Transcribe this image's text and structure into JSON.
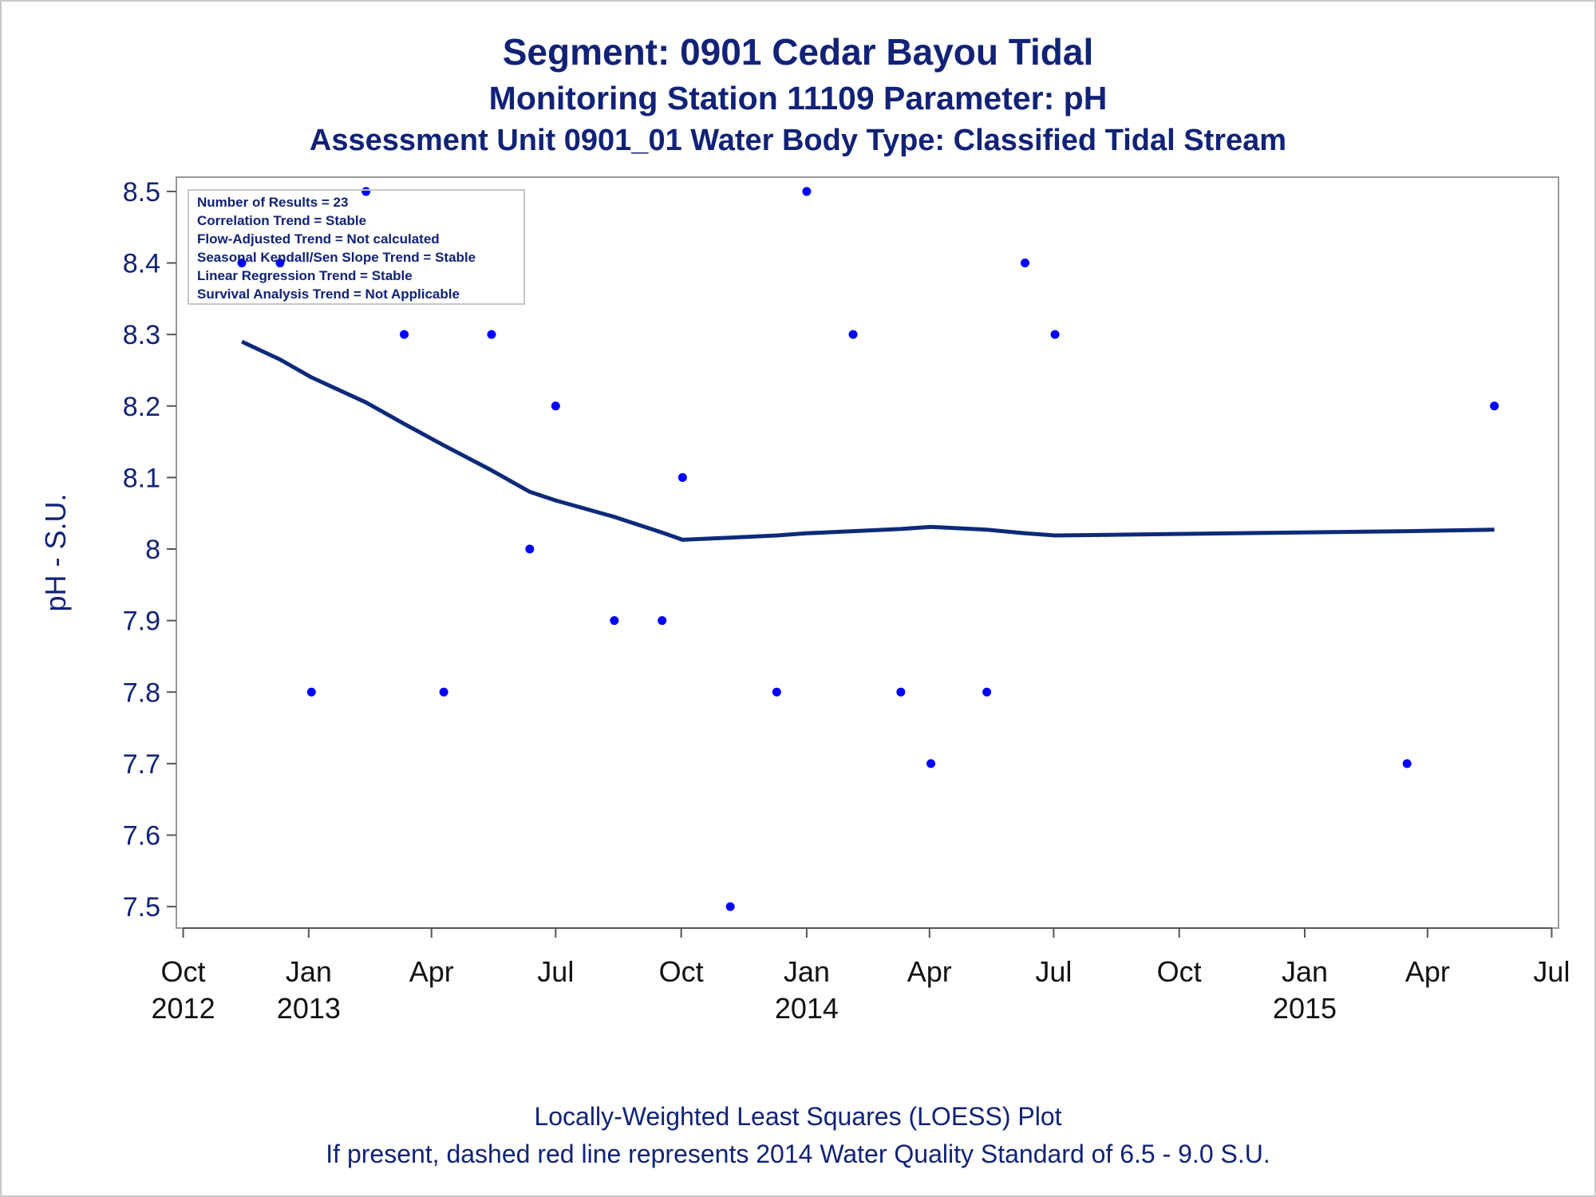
{
  "title": "Segment: 0901  Cedar Bayou Tidal",
  "subtitle_1": "Monitoring Station 11109 Parameter: pH",
  "subtitle_2": "Assessment Unit 0901_01   Water Body Type: Classified Tidal Stream",
  "footnotes": [
    "Locally-Weighted Least Squares (LOESS) Plot",
    "If present, dashed red line represents 2014 Water Quality Standard of 6.5 - 9.0 S.U."
  ],
  "inset_box": [
    "Number of Results = 23",
    "Correlation Trend = Stable",
    "Flow-Adjusted Trend = Not calculated",
    "Seasonal Kendall/Sen Slope Trend = Stable",
    "Linear Regression Trend = Stable",
    "Survival Analysis Trend = Not Applicable"
  ],
  "colors": {
    "text": "#112277",
    "points": "#0000ff",
    "loess_line": "#0d2a7a",
    "axis": "#999999"
  },
  "chart_data": {
    "type": "scatter",
    "xlabel": "",
    "ylabel": "pH - S.U.",
    "xlim": [
      "2012-09-26",
      "2015-07-06"
    ],
    "ylim": [
      7.47,
      8.52
    ],
    "grid": false,
    "y_ticks": [
      7.5,
      7.6,
      7.7,
      7.8,
      7.9,
      8,
      8.1,
      8.2,
      8.3,
      8.4,
      8.5
    ],
    "y_tick_labels": [
      "7.5",
      "7.6",
      "7.7",
      "7.8",
      "7.9",
      "8",
      "8.1",
      "8.2",
      "8.3",
      "8.4",
      "8.5"
    ],
    "x_ticks": [
      {
        "date": "2012-10-01",
        "month": "Oct",
        "year": "2012"
      },
      {
        "date": "2013-01-01",
        "month": "Jan",
        "year": "2013"
      },
      {
        "date": "2013-04-01",
        "month": "Apr",
        "year": ""
      },
      {
        "date": "2013-07-01",
        "month": "Jul",
        "year": ""
      },
      {
        "date": "2013-10-01",
        "month": "Oct",
        "year": ""
      },
      {
        "date": "2014-01-01",
        "month": "Jan",
        "year": "2014"
      },
      {
        "date": "2014-04-01",
        "month": "Apr",
        "year": ""
      },
      {
        "date": "2014-07-01",
        "month": "Jul",
        "year": ""
      },
      {
        "date": "2014-10-01",
        "month": "Oct",
        "year": ""
      },
      {
        "date": "2015-01-01",
        "month": "Jan",
        "year": "2015"
      },
      {
        "date": "2015-04-01",
        "month": "Apr",
        "year": ""
      },
      {
        "date": "2015-07-01",
        "month": "Jul",
        "year": ""
      }
    ],
    "series": [
      {
        "type": "scatter",
        "points": [
          {
            "x": "2012-11-13",
            "y": 8.4
          },
          {
            "x": "2012-12-11",
            "y": 8.4
          },
          {
            "x": "2013-01-03",
            "y": 7.8
          },
          {
            "x": "2013-02-12",
            "y": 8.5
          },
          {
            "x": "2013-03-12",
            "y": 8.3
          },
          {
            "x": "2013-04-10",
            "y": 7.8
          },
          {
            "x": "2013-05-15",
            "y": 8.3
          },
          {
            "x": "2013-06-12",
            "y": 8.0
          },
          {
            "x": "2013-07-01",
            "y": 8.2
          },
          {
            "x": "2013-08-13",
            "y": 7.9
          },
          {
            "x": "2013-09-17",
            "y": 7.9
          },
          {
            "x": "2013-10-02",
            "y": 8.1
          },
          {
            "x": "2013-11-06",
            "y": 7.5
          },
          {
            "x": "2013-12-10",
            "y": 7.8
          },
          {
            "x": "2014-01-01",
            "y": 8.5
          },
          {
            "x": "2014-02-04",
            "y": 8.3
          },
          {
            "x": "2014-03-11",
            "y": 7.8
          },
          {
            "x": "2014-04-02",
            "y": 7.7
          },
          {
            "x": "2014-05-13",
            "y": 7.8
          },
          {
            "x": "2014-06-10",
            "y": 8.4
          },
          {
            "x": "2014-07-02",
            "y": 8.3
          },
          {
            "x": "2015-03-17",
            "y": 7.7
          },
          {
            "x": "2015-05-20",
            "y": 8.2
          }
        ]
      },
      {
        "type": "line",
        "points": [
          {
            "x": "2012-11-13",
            "y": 8.29
          },
          {
            "x": "2012-12-11",
            "y": 8.265
          },
          {
            "x": "2013-01-03",
            "y": 8.24
          },
          {
            "x": "2013-02-12",
            "y": 8.205
          },
          {
            "x": "2013-03-12",
            "y": 8.175
          },
          {
            "x": "2013-04-10",
            "y": 8.145
          },
          {
            "x": "2013-05-15",
            "y": 8.11
          },
          {
            "x": "2013-06-12",
            "y": 8.08
          },
          {
            "x": "2013-07-01",
            "y": 8.068
          },
          {
            "x": "2013-08-13",
            "y": 8.045
          },
          {
            "x": "2013-09-17",
            "y": 8.023
          },
          {
            "x": "2013-10-02",
            "y": 8.013
          },
          {
            "x": "2013-11-06",
            "y": 8.016
          },
          {
            "x": "2013-12-10",
            "y": 8.019
          },
          {
            "x": "2014-01-01",
            "y": 8.022
          },
          {
            "x": "2014-02-04",
            "y": 8.025
          },
          {
            "x": "2014-03-11",
            "y": 8.028
          },
          {
            "x": "2014-04-02",
            "y": 8.031
          },
          {
            "x": "2014-05-13",
            "y": 8.027
          },
          {
            "x": "2014-06-10",
            "y": 8.022
          },
          {
            "x": "2014-07-02",
            "y": 8.019
          },
          {
            "x": "2015-03-17",
            "y": 8.025
          },
          {
            "x": "2015-05-20",
            "y": 8.027
          }
        ]
      }
    ]
  }
}
